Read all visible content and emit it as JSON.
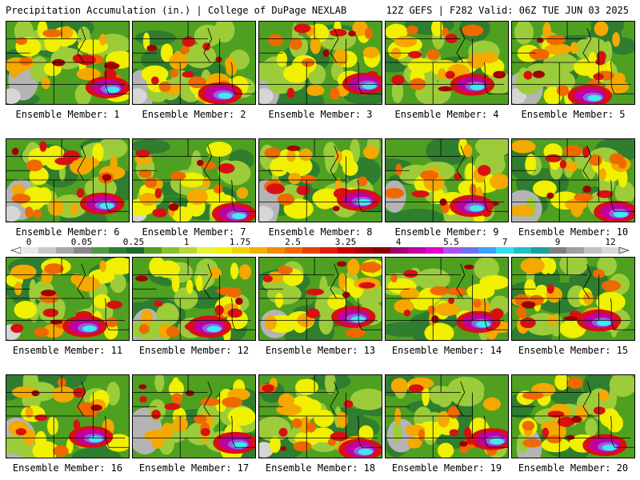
{
  "header": {
    "left": "Precipitation Accumulation (in.) | College of DuPage NEXLAB",
    "right": "12Z GEFS | F282 Valid: 06Z TUE JUN 03 2025"
  },
  "members": [
    {
      "label": "Ensemble Member: 1"
    },
    {
      "label": "Ensemble Member: 2"
    },
    {
      "label": "Ensemble Member: 3"
    },
    {
      "label": "Ensemble Member: 4"
    },
    {
      "label": "Ensemble Member: 5"
    },
    {
      "label": "Ensemble Member: 6"
    },
    {
      "label": "Ensemble Member: 7"
    },
    {
      "label": "Ensemble Member: 8"
    },
    {
      "label": "Ensemble Member: 9"
    },
    {
      "label": "Ensemble Member: 10"
    },
    {
      "label": "Ensemble Member: 11"
    },
    {
      "label": "Ensemble Member: 12"
    },
    {
      "label": "Ensemble Member: 13"
    },
    {
      "label": "Ensemble Member: 14"
    },
    {
      "label": "Ensemble Member: 15"
    },
    {
      "label": "Ensemble Member: 16"
    },
    {
      "label": "Ensemble Member: 17"
    },
    {
      "label": "Ensemble Member: 18"
    },
    {
      "label": "Ensemble Member: 19"
    },
    {
      "label": "Ensemble Member: 20"
    }
  ],
  "colorbar": {
    "ticks": [
      "0",
      "0.05",
      "0.25",
      "1",
      "1.75",
      "2.5",
      "3.25",
      "4",
      "5.5",
      "7",
      "9",
      "12"
    ],
    "colors": [
      "#e8e8e8",
      "#c8c8c8",
      "#a8a8a8",
      "#888888",
      "#4e9a3e",
      "#2f7d2f",
      "#1f6b2a",
      "#4fa020",
      "#86c232",
      "#b8d838",
      "#e6f23c",
      "#f4f400",
      "#f4d400",
      "#f4b000",
      "#f28c00",
      "#ee6a00",
      "#e84000",
      "#e01e00",
      "#cc0000",
      "#a80000",
      "#880000",
      "#a0006e",
      "#c000a0",
      "#e000d0",
      "#b050e8",
      "#7070f0",
      "#40a0f8",
      "#30e0f0",
      "#20c0c8",
      "#18a0a0",
      "#808080",
      "#a0a0a0",
      "#c0c0c0",
      "#d8d8d8"
    ]
  }
}
